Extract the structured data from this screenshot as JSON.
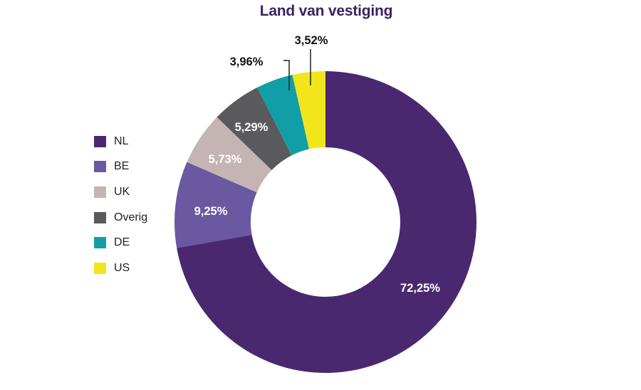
{
  "title": "Land van vestiging",
  "legend": [
    {
      "label": "NL",
      "color": "#4a2870"
    },
    {
      "label": "BE",
      "color": "#6a58a1"
    },
    {
      "label": "UK",
      "color": "#c4b4b4"
    },
    {
      "label": "Overig",
      "color": "#5a595b"
    },
    {
      "label": "DE",
      "color": "#129ea6"
    },
    {
      "label": "US",
      "color": "#f2e51c"
    }
  ],
  "labels": {
    "NL": "72,25%",
    "BE": "9,25%",
    "UK": "5,73%",
    "Overig": "5,29%",
    "DE": "3,96%",
    "US": "3,52%"
  },
  "chart_data": {
    "type": "pie",
    "subtype": "donut",
    "title": "Land van vestiging",
    "categories": [
      "NL",
      "BE",
      "UK",
      "Overig",
      "DE",
      "US"
    ],
    "values": [
      72.25,
      9.25,
      5.73,
      5.29,
      3.96,
      3.52
    ],
    "value_labels": [
      "72,25%",
      "9,25%",
      "5,73%",
      "5,29%",
      "3,96%",
      "3,52%"
    ],
    "colors": [
      "#4a2870",
      "#6a58a1",
      "#c4b4b4",
      "#5a595b",
      "#129ea6",
      "#f2e51c"
    ],
    "start_angle": "12 o'clock",
    "direction": "clockwise",
    "legend_position": "left",
    "external_callouts": [
      "DE",
      "US"
    ]
  }
}
